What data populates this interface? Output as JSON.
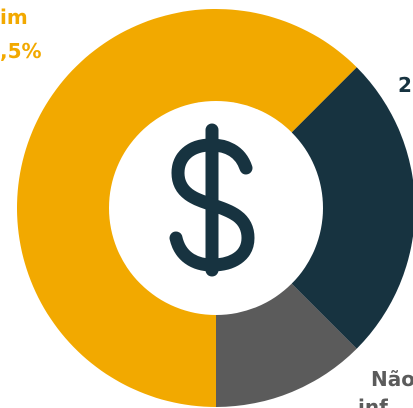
{
  "chart_data": {
    "type": "pie",
    "categories": [
      null,
      [
        "Não",
        "inf"
      ],
      "im"
    ],
    "values": [
      25,
      12.5,
      62.5
    ],
    "value_labels": [
      "2",
      null,
      ",5%"
    ],
    "colors": [
      "#173340",
      "#5b5b5b",
      "#f2a900"
    ]
  }
}
